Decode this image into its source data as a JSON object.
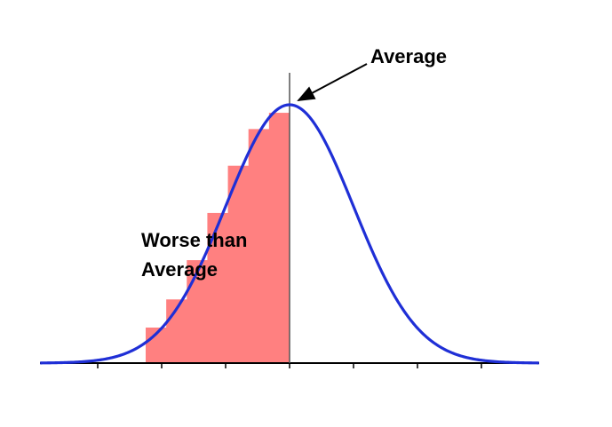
{
  "labels": {
    "average": "Average",
    "worse_line1": "Worse than",
    "worse_line2": "Average"
  },
  "colors": {
    "curve": "#1f2fd6",
    "fill": "#ff8080",
    "axis": "#000000",
    "mean_line": "#555555",
    "arrow": "#000000"
  },
  "distribution": {
    "type": "normal",
    "mean": 0,
    "std_dev": 1,
    "x_range": [
      -3.9,
      3.9
    ],
    "tick_positions_sd": [
      -3,
      -2,
      -1,
      0,
      1,
      2,
      3
    ],
    "shaded_region": "left of mean",
    "shaded_steps": 7
  }
}
